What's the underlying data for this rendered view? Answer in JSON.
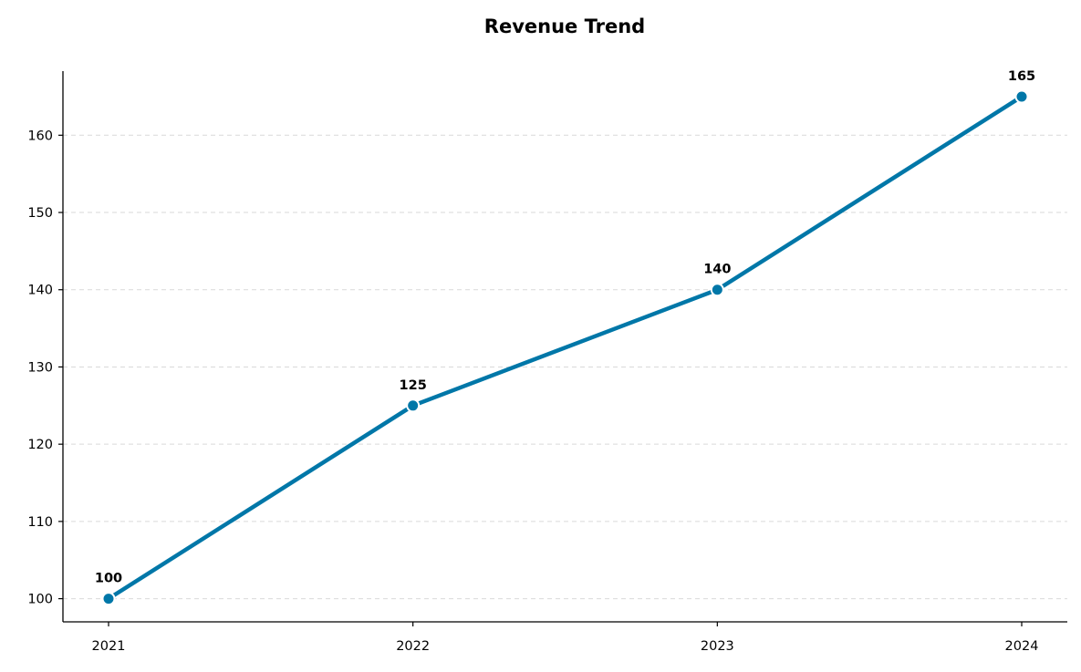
{
  "chart_data": {
    "type": "line",
    "title": "Revenue Trend",
    "xlabel": "",
    "ylabel": "",
    "categories": [
      "2021",
      "2022",
      "2023",
      "2024"
    ],
    "series": [
      {
        "values": [
          100,
          125,
          140,
          165
        ],
        "color": "#0077a8"
      }
    ],
    "data_labels": [
      "100",
      "125",
      "140",
      "165"
    ],
    "ylim": [
      97,
      168.3
    ],
    "yticks": [
      100,
      110,
      120,
      130,
      140,
      150,
      160
    ],
    "ytick_labels": [
      "100",
      "110",
      "120",
      "130",
      "140",
      "150",
      "160"
    ],
    "grid": "horizontal-dashed",
    "legend": "none",
    "colors": {
      "line": "#0077a8",
      "marker_edge": "#ffffff",
      "grid": "#d9d9d9",
      "axis": "#000000"
    }
  }
}
